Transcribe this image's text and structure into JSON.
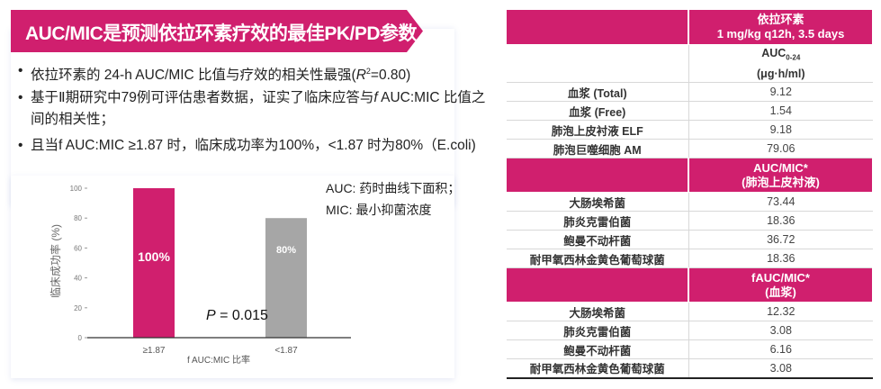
{
  "title": "AUC/MIC是预测依拉环素疗效的最佳PK/PD参数",
  "bullets": [
    {
      "before": "依拉环素的 24-h AUC/MIC 比值与疗效的相关性最强(",
      "italic": "R",
      "sup": "2",
      "after": "=0.80)"
    },
    {
      "before": "基于Ⅱ期研究中79例可评估患者数据，证实了临床应答与",
      "italic": "f",
      "sup": "",
      "after": " AUC:MIC 比值之间的相关性；"
    },
    {
      "before": "且当f AUC:MIC ≥1.87 时，临床成功率为100%，<1.87 时为80%（E.coli)",
      "italic": "",
      "sup": "",
      "after": ""
    }
  ],
  "notes": [
    "AUC: 药时曲线下面积；",
    "MIC: 最小抑菌浓度"
  ],
  "chart_data": {
    "type": "bar",
    "categories": [
      "≥1.87",
      "<1.87"
    ],
    "values": [
      100,
      80
    ],
    "data_labels": [
      "100%",
      "80%"
    ],
    "colors": [
      "#d01f6e",
      "#a6a6a6"
    ],
    "xlabel": "f AUC:MIC 比率",
    "ylabel": "临床成功率 (%)",
    "ylim": [
      0,
      100
    ],
    "yticks": [
      0,
      20,
      40,
      60,
      80,
      100
    ],
    "annotation_italic": "P",
    "annotation": " = 0.015",
    "grid": false
  },
  "table": {
    "header": [
      "",
      "依拉环素",
      "1 mg/kg q12h, 3.5 days"
    ],
    "sections": [
      {
        "head": [
          "AUC",
          "0-24",
          "(μg·h/ml)"
        ],
        "pink": false,
        "rows": [
          [
            "血浆 (Total)",
            "9.12"
          ],
          [
            "血浆 (Free)",
            "1.54"
          ],
          [
            "肺泡上皮衬液 ELF",
            "9.18"
          ],
          [
            "肺泡巨噬细胞 AM",
            "79.06"
          ]
        ]
      },
      {
        "head": [
          "AUC/MIC*",
          "",
          "(肺泡上皮衬液)"
        ],
        "pink": true,
        "rows": [
          [
            "大肠埃希菌",
            "73.44"
          ],
          [
            "肺炎克雷伯菌",
            "18.36"
          ],
          [
            "鲍曼不动杆菌",
            "36.72"
          ],
          [
            "耐甲氧西林金黄色葡萄球菌",
            "18.36"
          ]
        ]
      },
      {
        "head": [
          "fAUC/MIC*",
          "",
          "(血浆)"
        ],
        "pink": true,
        "rows": [
          [
            "大肠埃希菌",
            "12.32"
          ],
          [
            "肺炎克雷伯菌",
            "3.08"
          ],
          [
            "鲍曼不动杆菌",
            "6.16"
          ],
          [
            "耐甲氧西林金黄色葡萄球菌",
            "3.08"
          ]
        ]
      }
    ]
  }
}
